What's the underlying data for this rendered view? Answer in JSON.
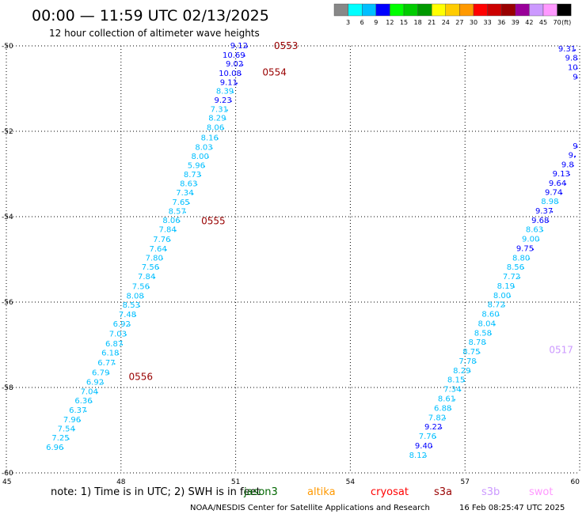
{
  "header": {
    "title": "00:00 — 11:59 UTC 02/13/2025",
    "subtitle": "12 hour collection of altimeter wave heights"
  },
  "colorbar": {
    "colors": [
      "#888888",
      "#00ffff",
      "#00bfff",
      "#0000ff",
      "#00ff00",
      "#00cc00",
      "#009900",
      "#ffff00",
      "#ffcc00",
      "#ff9900",
      "#ff0000",
      "#cc0000",
      "#990000",
      "#990099",
      "#cc99ff",
      "#ff99ff",
      "#000000"
    ],
    "labels": [
      "3",
      "6",
      "9",
      "12",
      "15",
      "18",
      "21",
      "24",
      "27",
      "30",
      "33",
      "36",
      "39",
      "42",
      "45",
      "70",
      "(ft)"
    ]
  },
  "footer": {
    "note": "note:  1) Time is in UTC; 2) SWH is in feet",
    "satellites": [
      {
        "name": "jason3",
        "color": "#006600"
      },
      {
        "name": "altika",
        "color": "#ff9900"
      },
      {
        "name": "cryosat",
        "color": "#ff0000"
      },
      {
        "name": "s3a",
        "color": "#990000"
      },
      {
        "name": "s3b",
        "color": "#cc99ff"
      },
      {
        "name": "swot",
        "color": "#ff99ff"
      }
    ],
    "credit": "NOAA/NESDIS Center for Satellite Applications and Research",
    "timestamp": "16 Feb 08:25:47 UTC 2025"
  },
  "chart_data": {
    "type": "scatter",
    "title": "00:00 — 11:59 UTC 02/13/2025",
    "subtitle": "12 hour collection of altimeter wave heights",
    "xlabel": "",
    "ylabel": "",
    "xlim": [
      45,
      60
    ],
    "ylim": [
      -60,
      -50
    ],
    "x_ticks": [
      "45",
      "48",
      "51",
      "54",
      "57",
      "60"
    ],
    "y_ticks": [
      "-50",
      "-52",
      "-54",
      "-56",
      "-58",
      "-60"
    ],
    "grid": true,
    "time_labels": [
      {
        "text": "0553",
        "lon": 52.0,
        "lat": -49.98,
        "color": "#990000"
      },
      {
        "text": "0554",
        "lon": 51.7,
        "lat": -50.6,
        "color": "#990000"
      },
      {
        "text": "0555",
        "lon": 50.1,
        "lat": -54.08,
        "color": "#990000"
      },
      {
        "text": "0556",
        "lon": 48.2,
        "lat": -57.73,
        "color": "#990000"
      },
      {
        "text": "0517",
        "lon": 59.2,
        "lat": -57.1,
        "color": "#cc99ff"
      }
    ],
    "series": [
      {
        "name": "0553-0556",
        "points": [
          {
            "lon": 51.32,
            "lat": -49.98,
            "swh": "9.12",
            "color": "#0000ff"
          },
          {
            "lon": 51.25,
            "lat": -50.2,
            "swh": "10.69",
            "color": "#0000ff"
          },
          {
            "lon": 51.2,
            "lat": -50.41,
            "swh": "9.02",
            "color": "#0000ff"
          },
          {
            "lon": 51.15,
            "lat": -50.63,
            "swh": "10.08",
            "color": "#0000ff"
          },
          {
            "lon": 51.05,
            "lat": -50.84,
            "swh": "9.11",
            "color": "#0000ff"
          },
          {
            "lon": 50.95,
            "lat": -51.05,
            "swh": "8.39",
            "color": "#00bfff"
          },
          {
            "lon": 50.9,
            "lat": -51.26,
            "swh": "9.23",
            "color": "#0000ff"
          },
          {
            "lon": 50.8,
            "lat": -51.47,
            "swh": "7.31",
            "color": "#00bfff"
          },
          {
            "lon": 50.75,
            "lat": -51.68,
            "swh": "8.29",
            "color": "#00bfff"
          },
          {
            "lon": 50.7,
            "lat": -51.9,
            "swh": "8.06",
            "color": "#00bfff"
          },
          {
            "lon": 50.55,
            "lat": -52.14,
            "swh": "8.16",
            "color": "#00bfff"
          },
          {
            "lon": 50.4,
            "lat": -52.36,
            "swh": "8.03",
            "color": "#00bfff"
          },
          {
            "lon": 50.3,
            "lat": -52.57,
            "swh": "8.00",
            "color": "#00bfff"
          },
          {
            "lon": 50.2,
            "lat": -52.79,
            "swh": "5.96",
            "color": "#00bfff"
          },
          {
            "lon": 50.1,
            "lat": -53.0,
            "swh": "8.73",
            "color": "#00bfff"
          },
          {
            "lon": 50.0,
            "lat": -53.21,
            "swh": "8.63",
            "color": "#00bfff"
          },
          {
            "lon": 49.9,
            "lat": -53.43,
            "swh": "7.34",
            "color": "#00bfff"
          },
          {
            "lon": 49.8,
            "lat": -53.65,
            "swh": "7.65",
            "color": "#00bfff"
          },
          {
            "lon": 49.7,
            "lat": -53.86,
            "swh": "8.57",
            "color": "#00bfff"
          },
          {
            "lon": 49.55,
            "lat": -54.07,
            "swh": "8.06",
            "color": "#00bfff"
          },
          {
            "lon": 49.45,
            "lat": -54.29,
            "swh": "7.84",
            "color": "#00bfff"
          },
          {
            "lon": 49.3,
            "lat": -54.52,
            "swh": "7.76",
            "color": "#00bfff"
          },
          {
            "lon": 49.2,
            "lat": -54.74,
            "swh": "7.64",
            "color": "#00bfff"
          },
          {
            "lon": 49.1,
            "lat": -54.95,
            "swh": "7.80",
            "color": "#00bfff"
          },
          {
            "lon": 49.0,
            "lat": -55.17,
            "swh": "7.56",
            "color": "#00bfff"
          },
          {
            "lon": 48.9,
            "lat": -55.39,
            "swh": "7.84",
            "color": "#00bfff"
          },
          {
            "lon": 48.75,
            "lat": -55.62,
            "swh": "7.56",
            "color": "#00bfff"
          },
          {
            "lon": 48.6,
            "lat": -55.84,
            "swh": "8.08",
            "color": "#00bfff"
          },
          {
            "lon": 48.5,
            "lat": -56.06,
            "swh": "8.53",
            "color": "#00bfff"
          },
          {
            "lon": 48.4,
            "lat": -56.28,
            "swh": "7.48",
            "color": "#00bfff"
          },
          {
            "lon": 48.25,
            "lat": -56.5,
            "swh": "6.92",
            "color": "#00bfff"
          },
          {
            "lon": 48.15,
            "lat": -56.73,
            "swh": "7.03",
            "color": "#00bfff"
          },
          {
            "lon": 48.05,
            "lat": -56.96,
            "swh": "6.87",
            "color": "#00bfff"
          },
          {
            "lon": 47.95,
            "lat": -57.18,
            "swh": "6.18",
            "color": "#00bfff"
          },
          {
            "lon": 47.85,
            "lat": -57.41,
            "swh": "6.77",
            "color": "#00bfff"
          },
          {
            "lon": 47.7,
            "lat": -57.64,
            "swh": "6.79",
            "color": "#00bfff"
          },
          {
            "lon": 47.55,
            "lat": -57.86,
            "swh": "6.92",
            "color": "#00bfff"
          },
          {
            "lon": 47.4,
            "lat": -58.08,
            "swh": "7.04",
            "color": "#00bfff"
          },
          {
            "lon": 47.25,
            "lat": -58.3,
            "swh": "6.36",
            "color": "#00bfff"
          },
          {
            "lon": 47.1,
            "lat": -58.52,
            "swh": "6.37",
            "color": "#00bfff"
          },
          {
            "lon": 46.95,
            "lat": -58.74,
            "swh": "7.96",
            "color": "#00bfff"
          },
          {
            "lon": 46.8,
            "lat": -58.95,
            "swh": "7.54",
            "color": "#00bfff"
          },
          {
            "lon": 46.65,
            "lat": -59.17,
            "swh": "7.25",
            "color": "#00bfff"
          },
          {
            "lon": 46.5,
            "lat": -59.39,
            "swh": "6.96",
            "color": "#00bfff"
          }
        ]
      },
      {
        "name": "0517",
        "points": [
          {
            "lon": 59.9,
            "lat": -50.06,
            "swh": "9.31",
            "color": "#0000ff"
          },
          {
            "lon": 59.95,
            "lat": -50.27,
            "swh": "9.8",
            "color": "#0000ff"
          },
          {
            "lon": 59.95,
            "lat": -50.49,
            "swh": "10",
            "color": "#0000ff"
          },
          {
            "lon": 59.95,
            "lat": -50.71,
            "swh": "9",
            "color": "#0000ff"
          },
          {
            "lon": 59.95,
            "lat": -52.33,
            "swh": "9",
            "color": "#0000ff"
          },
          {
            "lon": 59.9,
            "lat": -52.55,
            "swh": "9.",
            "color": "#0000ff"
          },
          {
            "lon": 59.85,
            "lat": -52.77,
            "swh": "9.8",
            "color": "#0000ff"
          },
          {
            "lon": 59.75,
            "lat": -52.98,
            "swh": "9.13",
            "color": "#0000ff"
          },
          {
            "lon": 59.65,
            "lat": -53.2,
            "swh": "9.64",
            "color": "#0000ff"
          },
          {
            "lon": 59.55,
            "lat": -53.42,
            "swh": "9.74",
            "color": "#0000ff"
          },
          {
            "lon": 59.45,
            "lat": -53.63,
            "swh": "8.98",
            "color": "#00bfff"
          },
          {
            "lon": 59.3,
            "lat": -53.85,
            "swh": "9.37",
            "color": "#0000ff"
          },
          {
            "lon": 59.2,
            "lat": -54.07,
            "swh": "9.68",
            "color": "#0000ff"
          },
          {
            "lon": 59.05,
            "lat": -54.29,
            "swh": "8.63",
            "color": "#00bfff"
          },
          {
            "lon": 58.95,
            "lat": -54.51,
            "swh": "9.00",
            "color": "#00bfff"
          },
          {
            "lon": 58.8,
            "lat": -54.73,
            "swh": "9.75",
            "color": "#0000ff"
          },
          {
            "lon": 58.7,
            "lat": -54.95,
            "swh": "8.80",
            "color": "#00bfff"
          },
          {
            "lon": 58.55,
            "lat": -55.17,
            "swh": "8.56",
            "color": "#00bfff"
          },
          {
            "lon": 58.45,
            "lat": -55.39,
            "swh": "7.72",
            "color": "#00bfff"
          },
          {
            "lon": 58.3,
            "lat": -55.61,
            "swh": "8.19",
            "color": "#00bfff"
          },
          {
            "lon": 58.2,
            "lat": -55.83,
            "swh": "8.00",
            "color": "#00bfff"
          },
          {
            "lon": 58.05,
            "lat": -56.05,
            "swh": "8.72",
            "color": "#00bfff"
          },
          {
            "lon": 57.9,
            "lat": -56.27,
            "swh": "8.60",
            "color": "#00bfff"
          },
          {
            "lon": 57.8,
            "lat": -56.49,
            "swh": "8.04",
            "color": "#00bfff"
          },
          {
            "lon": 57.7,
            "lat": -56.71,
            "swh": "8.58",
            "color": "#00bfff"
          },
          {
            "lon": 57.55,
            "lat": -56.93,
            "swh": "8.78",
            "color": "#00bfff"
          },
          {
            "lon": 57.4,
            "lat": -57.15,
            "swh": "8.75",
            "color": "#00bfff"
          },
          {
            "lon": 57.3,
            "lat": -57.37,
            "swh": "7.78",
            "color": "#00bfff"
          },
          {
            "lon": 57.15,
            "lat": -57.59,
            "swh": "8.29",
            "color": "#00bfff"
          },
          {
            "lon": 57.0,
            "lat": -57.81,
            "swh": "8.15",
            "color": "#00bfff"
          },
          {
            "lon": 56.9,
            "lat": -58.03,
            "swh": "7.34",
            "color": "#00bfff"
          },
          {
            "lon": 56.75,
            "lat": -58.25,
            "swh": "8.61",
            "color": "#00bfff"
          },
          {
            "lon": 56.65,
            "lat": -58.47,
            "swh": "6.88",
            "color": "#00bfff"
          },
          {
            "lon": 56.5,
            "lat": -58.69,
            "swh": "7.82",
            "color": "#00bfff"
          },
          {
            "lon": 56.4,
            "lat": -58.91,
            "swh": "9.22",
            "color": "#0000ff"
          },
          {
            "lon": 56.25,
            "lat": -59.13,
            "swh": "7.76",
            "color": "#00bfff"
          },
          {
            "lon": 56.15,
            "lat": -59.35,
            "swh": "9.40",
            "color": "#0000ff"
          },
          {
            "lon": 56.0,
            "lat": -59.57,
            "swh": "8.12",
            "color": "#00bfff"
          }
        ]
      }
    ]
  }
}
